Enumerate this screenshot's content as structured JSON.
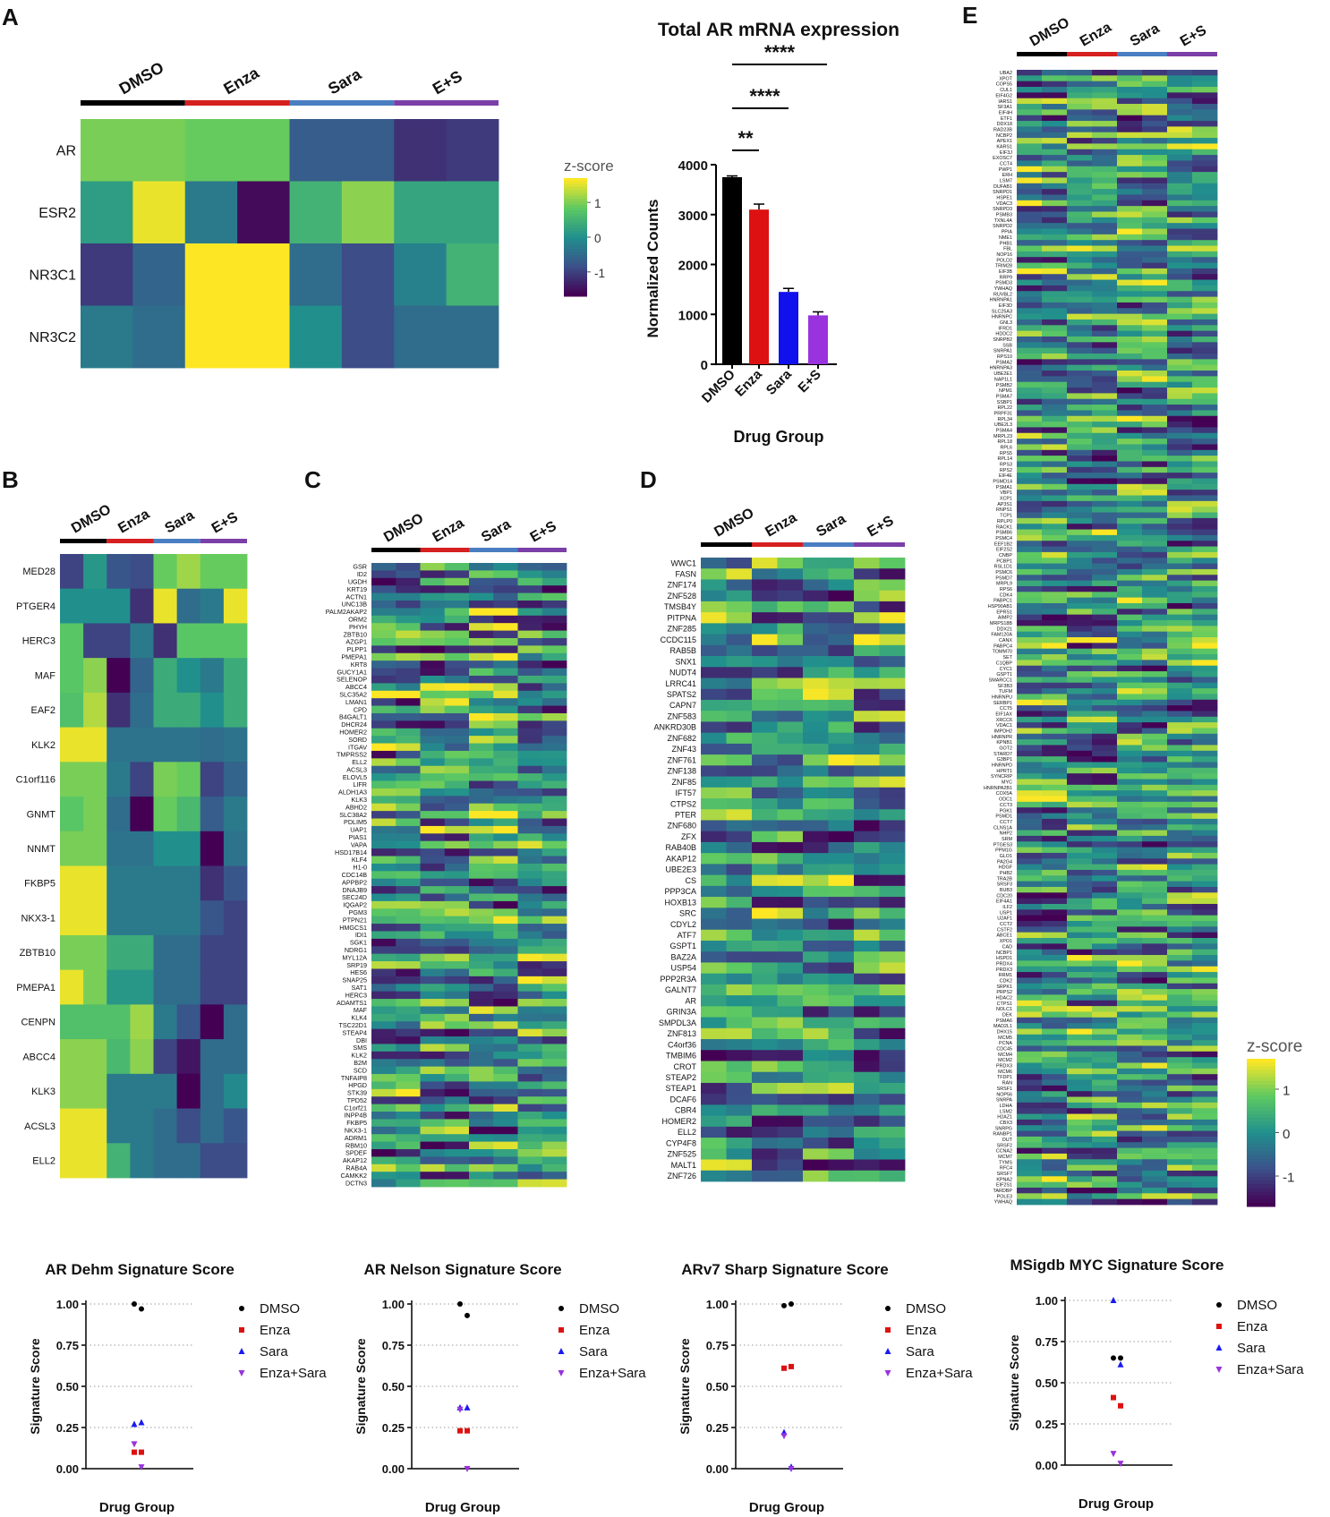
{
  "panel_letters": [
    "A",
    "B",
    "C",
    "D",
    "E"
  ],
  "group_names": [
    "DMSO",
    "Enza",
    "Sara",
    "E+S"
  ],
  "colors": {
    "group_bars": [
      "#000000",
      "#d62020",
      "#4a7ec2",
      "#7b3fa8"
    ],
    "bar_fills": [
      "#000000",
      "#dd1111",
      "#1111ee",
      "#9933dd"
    ],
    "points": [
      "#000000",
      "#dd1111",
      "#1a1af0",
      "#9933dd"
    ],
    "viridis": [
      "#440154",
      "#3b528b",
      "#21908d",
      "#5dc962",
      "#fde725"
    ]
  },
  "colorbars": [
    {
      "title": "z-score",
      "ticks": [
        "1",
        "0",
        "-1"
      ]
    },
    {
      "title": "z-score",
      "ticks": [
        "1",
        "0",
        "-1"
      ]
    }
  ],
  "chart_data": [
    {
      "type": "heatmap",
      "panel": "A",
      "columns": [
        "DMSO",
        "DMSO",
        "Enza",
        "Enza",
        "Sara",
        "Sara",
        "E+S",
        "E+S"
      ],
      "rows": [
        "AR",
        "ESR2",
        "NR3C1",
        "NR3C2"
      ],
      "values": [
        [
          1.0,
          1.0,
          0.9,
          0.9,
          -0.7,
          -0.7,
          -1.2,
          -1.1
        ],
        [
          0.2,
          1.6,
          -0.3,
          -1.6,
          0.5,
          1.1,
          0.3,
          0.3
        ],
        [
          -1.1,
          -0.6,
          1.7,
          1.7,
          -0.5,
          -0.9,
          -0.2,
          0.5
        ],
        [
          -0.3,
          -0.5,
          1.7,
          1.7,
          0.0,
          -0.9,
          -0.5,
          -0.5
        ]
      ],
      "colorbar": {
        "title": "z-score",
        "ticks": [
          1,
          0,
          -1
        ]
      }
    },
    {
      "type": "bar",
      "panel": "A",
      "title": "Total AR mRNA expression",
      "xlabel": "Drug Group",
      "ylabel": "Normalized Counts",
      "categories": [
        "DMSO",
        "Enza",
        "Sara",
        "E+S"
      ],
      "values": [
        3750,
        3100,
        1450,
        980
      ],
      "errors": [
        25,
        110,
        70,
        70
      ],
      "ylim": [
        0,
        4000
      ],
      "yticks": [
        "0",
        "1000",
        "2000",
        "3000",
        "4000"
      ],
      "significance": [
        {
          "label": "**",
          "from": "DMSO",
          "to": "Enza"
        },
        {
          "label": "****",
          "from": "DMSO",
          "to": "Sara"
        },
        {
          "label": "****",
          "from": "DMSO",
          "to": "E+S"
        }
      ]
    },
    {
      "type": "heatmap",
      "panel": "B",
      "rows": [
        "MED28",
        "PTGER4",
        "HERC3",
        "MAF",
        "EAF2",
        "KLK2",
        "C1orf116",
        "GNMT",
        "NNMT",
        "FKBP5",
        "NKX3-1",
        "ZBTB10",
        "PMEPA1",
        "CENPN",
        "ABCC4",
        "KLK3",
        "ACSL3",
        "ELL2"
      ],
      "values": [
        [
          -1.0,
          0.1,
          -0.8,
          -0.9,
          0.9,
          1.2,
          0.9,
          0.9
        ],
        [
          0.0,
          0.0,
          0.0,
          -1.2,
          1.6,
          -0.5,
          -0.3,
          1.6
        ],
        [
          0.8,
          -1.0,
          -1.0,
          -0.3,
          -1.2,
          0.8,
          0.8,
          0.8
        ],
        [
          0.8,
          1.1,
          -1.8,
          -0.6,
          0.4,
          0.0,
          -0.3,
          0.4
        ],
        [
          0.7,
          1.3,
          -1.2,
          -0.5,
          0.4,
          0.4,
          0.0,
          0.4
        ],
        [
          1.6,
          1.6,
          -0.4,
          -0.4,
          -0.4,
          -0.4,
          -0.5,
          -0.4
        ],
        [
          1.0,
          1.0,
          -0.3,
          -1.0,
          1.0,
          0.9,
          -1.0,
          -0.6
        ],
        [
          0.8,
          1.0,
          -0.5,
          -1.8,
          0.9,
          0.6,
          -0.7,
          -0.3
        ],
        [
          1.0,
          1.0,
          -0.4,
          -0.4,
          0.0,
          0.0,
          -1.8,
          -0.4
        ],
        [
          1.6,
          1.6,
          -0.3,
          -0.3,
          -0.3,
          -0.3,
          -1.2,
          -0.8
        ],
        [
          1.6,
          1.6,
          -0.3,
          -0.3,
          -0.3,
          -0.3,
          -0.8,
          -1.0
        ],
        [
          1.0,
          1.0,
          0.4,
          0.4,
          -0.5,
          -0.5,
          -1.0,
          -1.0
        ],
        [
          1.6,
          1.0,
          0.1,
          0.1,
          -0.5,
          -0.5,
          -1.0,
          -1.0
        ],
        [
          0.7,
          0.7,
          0.7,
          1.2,
          -0.3,
          -0.8,
          -1.8,
          -0.5
        ],
        [
          1.1,
          1.1,
          0.6,
          1.1,
          -1.0,
          -1.5,
          -0.5,
          -0.5
        ],
        [
          1.1,
          1.1,
          -0.3,
          -0.3,
          -0.3,
          -1.8,
          -0.5,
          -0.1
        ],
        [
          1.6,
          1.6,
          -0.3,
          -0.3,
          -0.5,
          -0.9,
          -0.5,
          -0.8
        ],
        [
          1.6,
          1.6,
          0.5,
          -0.3,
          -0.5,
          -0.5,
          -0.9,
          -0.9
        ]
      ]
    },
    {
      "type": "heatmap",
      "panel": "C",
      "rows": [
        "GSR",
        "ID2",
        "UGDH",
        "KRT19",
        "ACTN1",
        "UNC13B",
        "PALM2AKAP2",
        "ORM2",
        "PHYH",
        "ZBTB10",
        "AZGP1",
        "PLPP1",
        "PMEPA1",
        "KRT8",
        "GUCY1A1",
        "SELENOP",
        "ABCC4",
        "SLC35A2",
        "LMAN1",
        "CPD",
        "B4GALT1",
        "DHCR24",
        "HOMER2",
        "SORD",
        "ITGAV",
        "TMPRSS2",
        "ELL2",
        "ACSL3",
        "ELOVL5",
        "LIFR",
        "ALDH1A3",
        "KLK3",
        "ABHD2",
        "SLC38A2",
        "PDLIM5",
        "UAP1",
        "PIAS1",
        "VAPA",
        "HSD17B14",
        "KLF4",
        "H1-0",
        "CDC14B",
        "APPBP2",
        "DNAJB9",
        "SEC24D",
        "IQGAP2",
        "PGM3",
        "PTPN21",
        "HMGCS1",
        "IDI1",
        "SGK1",
        "NDRG1",
        "MYL12A",
        "SRP19",
        "HES6",
        "SNAP25",
        "SAT1",
        "HERC3",
        "ADAMTS1",
        "MAF",
        "KLK4",
        "TSC22D1",
        "STEAP4",
        "DBI",
        "SMS",
        "KLK2",
        "B2M",
        "SCD",
        "TNFAIP8",
        "HPGD",
        "STK39",
        "TPD52",
        "C1orf21",
        "INPP4B",
        "FKBP5",
        "NKX3-1",
        "ADRM1",
        "RBM10",
        "SPDEF",
        "AKAP12",
        "RAB4A",
        "CAMKK2",
        "DCTN3"
      ],
      "seed": 17
    },
    {
      "type": "heatmap",
      "panel": "D",
      "rows": [
        "WWC1",
        "FASN",
        "ZNF174",
        "ZNF528",
        "TMSB4Y",
        "PITPNA",
        "ZNF285",
        "CCDC115",
        "RAB5B",
        "SNX1",
        "NUDT4",
        "LRRC41",
        "SPATS2",
        "CAPN7",
        "ZNF583",
        "ANKRD30B",
        "ZNF682",
        "ZNF43",
        "ZNF761",
        "ZNF138",
        "ZNF85",
        "IFT57",
        "CTPS2",
        "PTER",
        "ZNF680",
        "ZFX",
        "RAB40B",
        "AKAP12",
        "UBE2E3",
        "CS",
        "PPP3CA",
        "HOXB13",
        "SRC",
        "CDYL2",
        "ATF7",
        "GSPT1",
        "BAZ2A",
        "USP54",
        "PPP2R3A",
        "GALNT7",
        "AR",
        "GRIN3A",
        "SMPDL3A",
        "ZNF813",
        "C4orf36",
        "TMBIM6",
        "CROT",
        "STEAP2",
        "STEAP1",
        "DCAF6",
        "CBR4",
        "HOMER2",
        "ELL2",
        "CYP4F8",
        "ZNF525",
        "MALT1",
        "ZNF726"
      ],
      "seed": 29
    },
    {
      "type": "heatmap",
      "panel": "E",
      "rows": [
        "UBA2",
        "XPOT",
        "COPS5",
        "CUL1",
        "EIF4G2",
        "IARS1",
        "SF3A1",
        "EIF4H",
        "ETF1",
        "DDX18",
        "RAD23B",
        "NCBP2",
        "APEX1",
        "KARS1",
        "EIF3J",
        "EXOSC7",
        "CCT4",
        "PWP1",
        "ERH",
        "LSM7",
        "DUFAB1",
        "SNRPD1",
        "HSPE1",
        "VDAC3",
        "SNRPD3",
        "PSMB3",
        "TXNL4A",
        "SNRPD2",
        "PPIA",
        "NME1",
        "PHB1",
        "FBL",
        "NOP16",
        "POLD2",
        "TRIM28",
        "EIF3B",
        "RRP9",
        "PSMD3",
        "YWHAQ",
        "RUVBL2",
        "HNRNPA1",
        "EIF3D",
        "SLC25A3",
        "HNRNPC",
        "GNL3",
        "IFRD1",
        "HDDC2",
        "SNRPB2",
        "SSB",
        "SNRPA1",
        "RPS10",
        "PSMA2",
        "HNRNPA3",
        "UBE2E1",
        "NAP1L1",
        "PSMB2",
        "NPM1",
        "PSMA7",
        "SSBP1",
        "RPL22",
        "PRPF31",
        "RPL34",
        "UBE2L3",
        "PSMA4",
        "MRPL23",
        "RPL18",
        "RPL6",
        "RPS5",
        "RPL14",
        "RPS3",
        "RPS2",
        "EIF4E",
        "PSMD14",
        "PSMA1",
        "VBP1",
        "XCP1",
        "AP3S1",
        "RNPS1",
        "TCP1",
        "RPLP0",
        "RACK1",
        "PSMB6",
        "PSMC4",
        "EEF1B2",
        "EIF2S2",
        "CNBP",
        "PCBP1",
        "RSL1D1",
        "PSMC6",
        "PSMD7",
        "MRPL9",
        "RPS6",
        "CDK4",
        "PABPC1",
        "HSP90AB1",
        "EPRS1",
        "AIMP2",
        "MRPS18B",
        "DDX21",
        "FAM120A",
        "CANX",
        "PABPC4",
        "TOMM70",
        "SET",
        "C1QBP",
        "CYC1",
        "GSPT1",
        "SMARCC1",
        "SF3B3",
        "TUFM",
        "HNRNPU",
        "SERBP1",
        "CCT5",
        "EIF1AX",
        "XRCC6",
        "VDAC1",
        "IMPDH2",
        "HNRNPR",
        "KPNB1",
        "GOT2",
        "STARD7",
        "G3BP1",
        "HNRNPD",
        "HPRT1",
        "SYNCRIP",
        "MYC",
        "HNRNPA2B1",
        "COX5A",
        "ODC1",
        "CCT3",
        "PGK1",
        "PSMD1",
        "CCT7",
        "CLNS1A",
        "NHP2",
        "SRM",
        "PTGES3",
        "PPM1G",
        "GLO1",
        "PA2G4",
        "HDGF",
        "PHB2",
        "TRA2B",
        "SRSF3",
        "BUB3",
        "CDC20",
        "EIF4A1",
        "ILF2",
        "USP1",
        "U2AF1",
        "CCT2",
        "CSTF2",
        "ABCE1",
        "XPO1",
        "CAD",
        "NCBP1",
        "HSPD1",
        "PRDX4",
        "PRDX3",
        "RRM1",
        "CDK2",
        "SRPK1",
        "PRPS2",
        "HDAC2",
        "CTPS1",
        "NOLC1",
        "DEK",
        "PSMA6",
        "MAD2L1",
        "DHX15",
        "MCM5",
        "PCNA",
        "CDC45",
        "MCM4",
        "MCM2",
        "PRDX3",
        "MCM6",
        "TFDP1",
        "RAN",
        "SRSF1",
        "NOP56",
        "SNRPA",
        "LDHA",
        "LSM2",
        "H2AZ1",
        "CBX3",
        "SNRPG",
        "RANBP1",
        "DUT",
        "SRSF2",
        "CCNA2",
        "MCM7",
        "TYMS",
        "RFC4",
        "SRSF7",
        "KPNA2",
        "EIF2S1",
        "TARDBP",
        "POLE3",
        "YWHAQ"
      ],
      "seed": 43
    },
    {
      "type": "scatter",
      "title": "AR Dehm Signature Score",
      "xlabel": "Drug Group",
      "ylabel": "Signature Score",
      "ylim": [
        0,
        1
      ],
      "yticks": [
        "0.00",
        "0.25",
        "0.50",
        "0.75",
        "1.00"
      ],
      "series": [
        {
          "name": "DMSO",
          "values": [
            1.0,
            0.97
          ]
        },
        {
          "name": "Enza",
          "values": [
            0.1,
            0.1
          ]
        },
        {
          "name": "Sara",
          "values": [
            0.27,
            0.28
          ]
        },
        {
          "name": "Enza+Sara",
          "values": [
            0.15,
            0.01
          ]
        }
      ]
    },
    {
      "type": "scatter",
      "title": "AR Nelson Signature Score",
      "xlabel": "Drug Group",
      "ylabel": "Signature Score",
      "ylim": [
        0,
        1
      ],
      "yticks": [
        "0.00",
        "0.25",
        "0.50",
        "0.75",
        "1.00"
      ],
      "series": [
        {
          "name": "DMSO",
          "values": [
            1.0,
            0.93
          ]
        },
        {
          "name": "Enza",
          "values": [
            0.23,
            0.23
          ]
        },
        {
          "name": "Sara",
          "values": [
            0.37,
            0.37
          ]
        },
        {
          "name": "Enza+Sara",
          "values": [
            0.36,
            0.0
          ]
        }
      ]
    },
    {
      "type": "scatter",
      "title": "ARv7 Sharp Signature Score",
      "xlabel": "Drug Group",
      "ylabel": "Signature Score",
      "ylim": [
        0,
        1
      ],
      "yticks": [
        "0.00",
        "0.25",
        "0.50",
        "0.75",
        "1.00"
      ],
      "series": [
        {
          "name": "DMSO",
          "values": [
            0.99,
            1.0
          ]
        },
        {
          "name": "Enza",
          "values": [
            0.61,
            0.62
          ]
        },
        {
          "name": "Sara",
          "values": [
            0.22,
            0.01
          ]
        },
        {
          "name": "Enza+Sara",
          "values": [
            0.2,
            0.0
          ]
        }
      ]
    },
    {
      "type": "scatter",
      "title": "MSigdb MYC Signature Score",
      "xlabel": "Drug Group",
      "ylabel": "Signature Score",
      "ylim": [
        0,
        1
      ],
      "yticks": [
        "0.00",
        "0.25",
        "0.50",
        "0.75",
        "1.00"
      ],
      "series": [
        {
          "name": "DMSO",
          "values": [
            0.65,
            0.65
          ]
        },
        {
          "name": "Enza",
          "values": [
            0.41,
            0.36
          ]
        },
        {
          "name": "Sara",
          "values": [
            1.0,
            0.61
          ]
        },
        {
          "name": "Enza+Sara",
          "values": [
            0.07,
            0.01
          ]
        }
      ]
    }
  ]
}
